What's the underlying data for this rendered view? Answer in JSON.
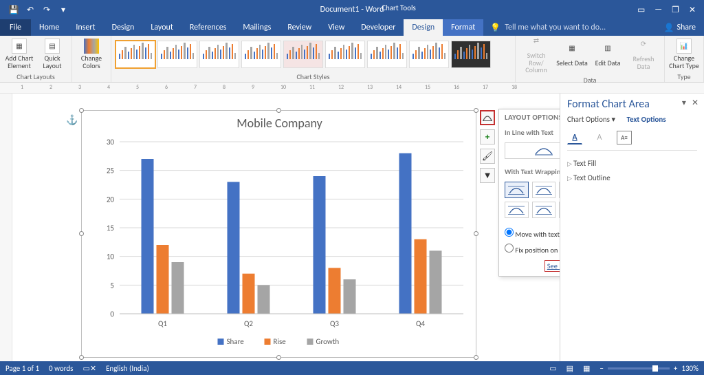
{
  "titlebar": {
    "doc": "Document1 - Word",
    "contextTab": "Chart Tools"
  },
  "menu": {
    "file": "File",
    "tabs": [
      "Home",
      "Insert",
      "Design",
      "Layout",
      "References",
      "Mailings",
      "Review",
      "View",
      "Developer"
    ],
    "ctx": [
      "Design",
      "Format"
    ],
    "active": "Design",
    "tell": "Tell me what you want to do...",
    "share": "Share"
  },
  "ribbon": {
    "chartLayouts": {
      "addEl": "Add Chart Element",
      "quick": "Quick Layout",
      "label": "Chart Layouts"
    },
    "colors": "Change Colors",
    "stylesLabel": "Chart Styles",
    "data": {
      "switch": "Switch Row/ Column",
      "select": "Select Data",
      "edit": "Edit Data",
      "refresh": "Refresh Data",
      "label": "Data"
    },
    "type": {
      "change": "Change Chart Type",
      "label": "Type"
    }
  },
  "rightPane": {
    "title": "Format Chart Area",
    "opt1": "Chart Options",
    "opt2": "Text Options",
    "fold1": "Text Fill",
    "fold2": "Text Outline"
  },
  "layoutPopup": {
    "title": "LAYOUT OPTIONS",
    "inline": "In Line with Text",
    "wrap": "With Text Wrapping",
    "r1": "Move with text",
    "r2": "Fix position on page",
    "see": "See more..."
  },
  "chart": {
    "title": "Mobile Company",
    "categories": [
      "Q1",
      "Q2",
      "Q3",
      "Q4"
    ],
    "series": [
      {
        "name": "Share",
        "color": "#4472c4",
        "values": [
          27,
          23,
          24,
          28
        ]
      },
      {
        "name": "Rise",
        "color": "#ed7d31",
        "values": [
          12,
          7,
          8,
          13
        ]
      },
      {
        "name": "Growth",
        "color": "#a5a5a5",
        "values": [
          9,
          5,
          6,
          11
        ]
      }
    ],
    "ymax": 30,
    "ystep": 5,
    "grid_color": "#d9d9d9",
    "axis_color": "#bfbfbf",
    "title_fontsize": 18,
    "tick_fontsize": 11,
    "legend_fontsize": 11,
    "background": "#ffffff"
  },
  "status": {
    "page": "Page 1 of 1",
    "words": "0 words",
    "lang": "English (India)",
    "zoom": "130%"
  },
  "ruler": {
    "marks": [
      1,
      2,
      3,
      4,
      5,
      6,
      7,
      8,
      9,
      10,
      11,
      12,
      13,
      14,
      15,
      16,
      17,
      18
    ]
  }
}
